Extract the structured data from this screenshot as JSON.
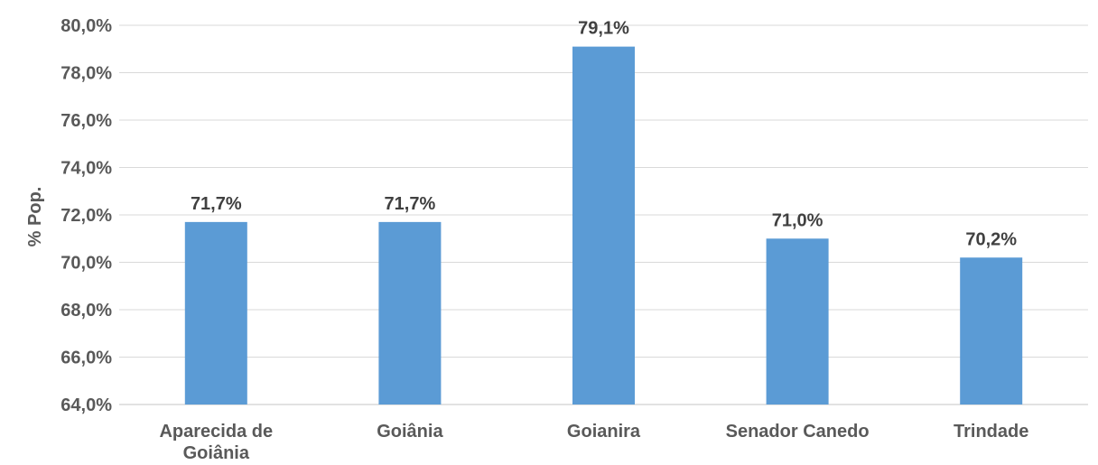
{
  "chart_data": {
    "type": "bar",
    "title": "",
    "ylabel": "% Pop.",
    "xlabel": "",
    "categories": [
      [
        "Aparecida de",
        "Goiânia"
      ],
      [
        "Goiânia"
      ],
      [
        "Goianira"
      ],
      [
        "Senador Canedo"
      ],
      [
        "Trindade"
      ]
    ],
    "values": [
      71.7,
      71.7,
      79.1,
      71.0,
      70.2
    ],
    "data_labels": [
      "71,7%",
      "71,7%",
      "79,1%",
      "71,0%",
      "70,2%"
    ],
    "ylim": [
      64,
      80
    ],
    "yticks": [
      64,
      66,
      68,
      70,
      72,
      74,
      76,
      78,
      80
    ],
    "ytick_labels": [
      "64,0%",
      "66,0%",
      "68,0%",
      "70,0%",
      "72,0%",
      "74,0%",
      "76,0%",
      "78,0%",
      "80,0%"
    ],
    "grid": true,
    "legend": "none",
    "bar_color": "#5B9BD5",
    "grid_color": "#D9D9D9"
  }
}
